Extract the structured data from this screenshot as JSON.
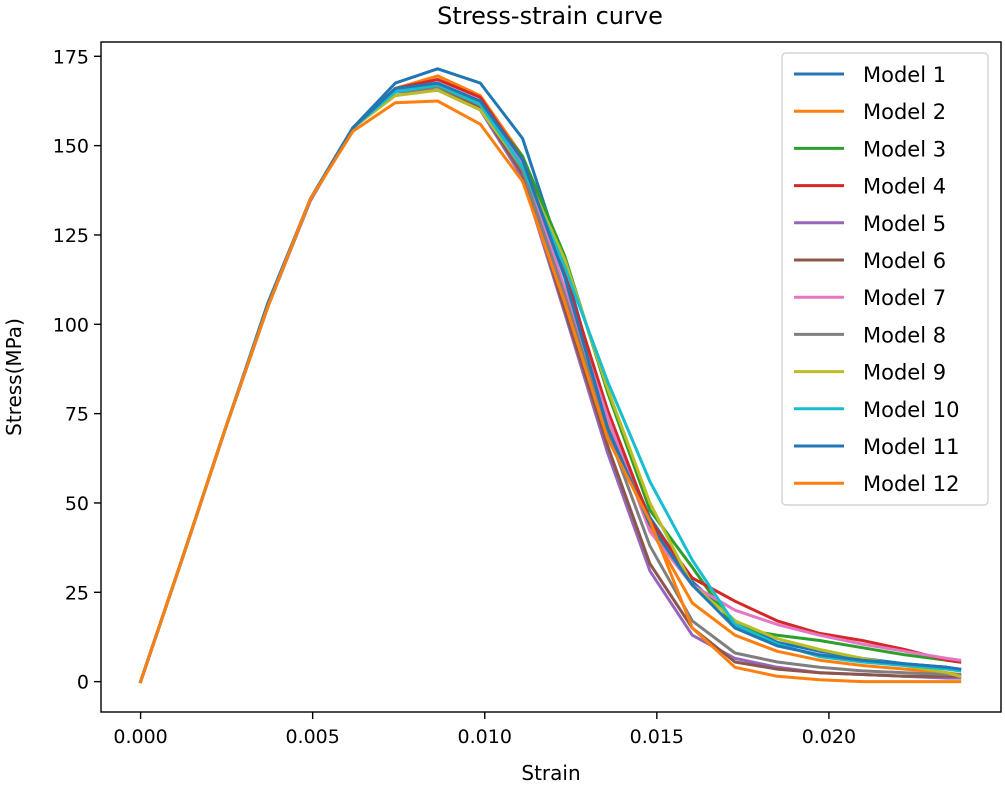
{
  "chart_data": {
    "type": "line",
    "title": "Stress-strain curve",
    "xlabel": "Strain",
    "ylabel": "Stress(MPa)",
    "xlim": [
      -0.00115,
      0.025
    ],
    "ylim": [
      -8.5,
      179
    ],
    "xticks": [
      0.0,
      0.005,
      0.01,
      0.015,
      0.02
    ],
    "xtick_labels": [
      "0.000",
      "0.005",
      "0.010",
      "0.015",
      "0.020"
    ],
    "yticks": [
      0,
      25,
      50,
      75,
      100,
      125,
      150,
      175
    ],
    "ytick_labels": [
      "0",
      "25",
      "50",
      "75",
      "100",
      "125",
      "150",
      "175"
    ],
    "grid": false,
    "legend_position": "top-right",
    "x": [
      0.0,
      0.00123,
      0.00247,
      0.0037,
      0.00493,
      0.00617,
      0.0074,
      0.00863,
      0.00987,
      0.0111,
      0.01233,
      0.01357,
      0.0148,
      0.01603,
      0.01727,
      0.0185,
      0.01973,
      0.02097,
      0.0222,
      0.02343,
      0.0238
    ],
    "series": [
      {
        "name": "Model 1",
        "color": "#1f77b4",
        "values": [
          0,
          35,
          71,
          106,
          135,
          155,
          167.5,
          171.5,
          167.5,
          152,
          116,
          73,
          46,
          28,
          17,
          11,
          8.5,
          6.5,
          5,
          4,
          3.5
        ]
      },
      {
        "name": "Model 2",
        "color": "#ff7f0e",
        "values": [
          0,
          35,
          71,
          105,
          135,
          155,
          166,
          169.5,
          164,
          147,
          114,
          73,
          43,
          22,
          13,
          8.5,
          6,
          4.5,
          3.5,
          2.5,
          2
        ]
      },
      {
        "name": "Model 3",
        "color": "#2ca02c",
        "values": [
          0,
          35,
          71,
          105,
          135,
          155,
          165,
          167,
          162,
          147,
          119,
          81,
          48,
          32,
          15,
          13,
          11.5,
          9.5,
          7.5,
          6,
          5.5
        ]
      },
      {
        "name": "Model 4",
        "color": "#d62728",
        "values": [
          0,
          35,
          71,
          105,
          135,
          155,
          166,
          168.5,
          163.5,
          146,
          114,
          76,
          45,
          29,
          22.5,
          17,
          13.5,
          11.5,
          9,
          6,
          5.5
        ]
      },
      {
        "name": "Model 5",
        "color": "#9467bd",
        "values": [
          0,
          35,
          71,
          105,
          134.5,
          155,
          165,
          165.5,
          160,
          141,
          103,
          64,
          31,
          13,
          6.5,
          4,
          2.5,
          2,
          1.5,
          1,
          1
        ]
      },
      {
        "name": "Model 6",
        "color": "#8c564b",
        "values": [
          0,
          35,
          71,
          105,
          135,
          155,
          165,
          166.5,
          160.5,
          142,
          104,
          66,
          33,
          15,
          5.5,
          3.5,
          2.5,
          2,
          1.5,
          1.5,
          1.5
        ]
      },
      {
        "name": "Model 7",
        "color": "#e377c2",
        "values": [
          0,
          35,
          71,
          105,
          135,
          155,
          165,
          167.5,
          162,
          145,
          110,
          74,
          42,
          27,
          20,
          16,
          13,
          10.5,
          8.5,
          6.5,
          6
        ]
      },
      {
        "name": "Model 8",
        "color": "#7f7f7f",
        "values": [
          0,
          35,
          71,
          105,
          135,
          155,
          165,
          166.5,
          161.5,
          143,
          108,
          70,
          38,
          17,
          8,
          5.5,
          4,
          3,
          2.5,
          2,
          2
        ]
      },
      {
        "name": "Model 9",
        "color": "#bcbd22",
        "values": [
          0,
          35,
          71,
          105,
          135,
          155,
          164,
          165.5,
          160,
          144,
          118,
          82,
          50,
          27,
          17,
          12,
          9,
          6.5,
          4.5,
          2.5,
          1.5
        ]
      },
      {
        "name": "Model 10",
        "color": "#17becf",
        "values": [
          0,
          35,
          71,
          105,
          135,
          155,
          165,
          167,
          161.5,
          144,
          116,
          84,
          56,
          34,
          16,
          10.5,
          7,
          5.5,
          4.5,
          3.5,
          3
        ]
      },
      {
        "name": "Model 11",
        "color": "#1f77b4",
        "values": [
          0,
          35,
          71,
          105,
          135,
          155,
          166,
          167.5,
          162.5,
          146,
          113,
          71,
          44,
          27,
          15,
          10,
          7.5,
          6,
          5,
          4,
          3.5
        ]
      },
      {
        "name": "Model 12",
        "color": "#ff7f0e",
        "values": [
          0,
          35,
          71,
          105,
          135,
          154,
          162,
          162.5,
          156,
          140,
          106,
          68,
          45,
          15,
          4,
          1.5,
          0.5,
          0,
          0,
          0,
          0
        ]
      }
    ]
  }
}
